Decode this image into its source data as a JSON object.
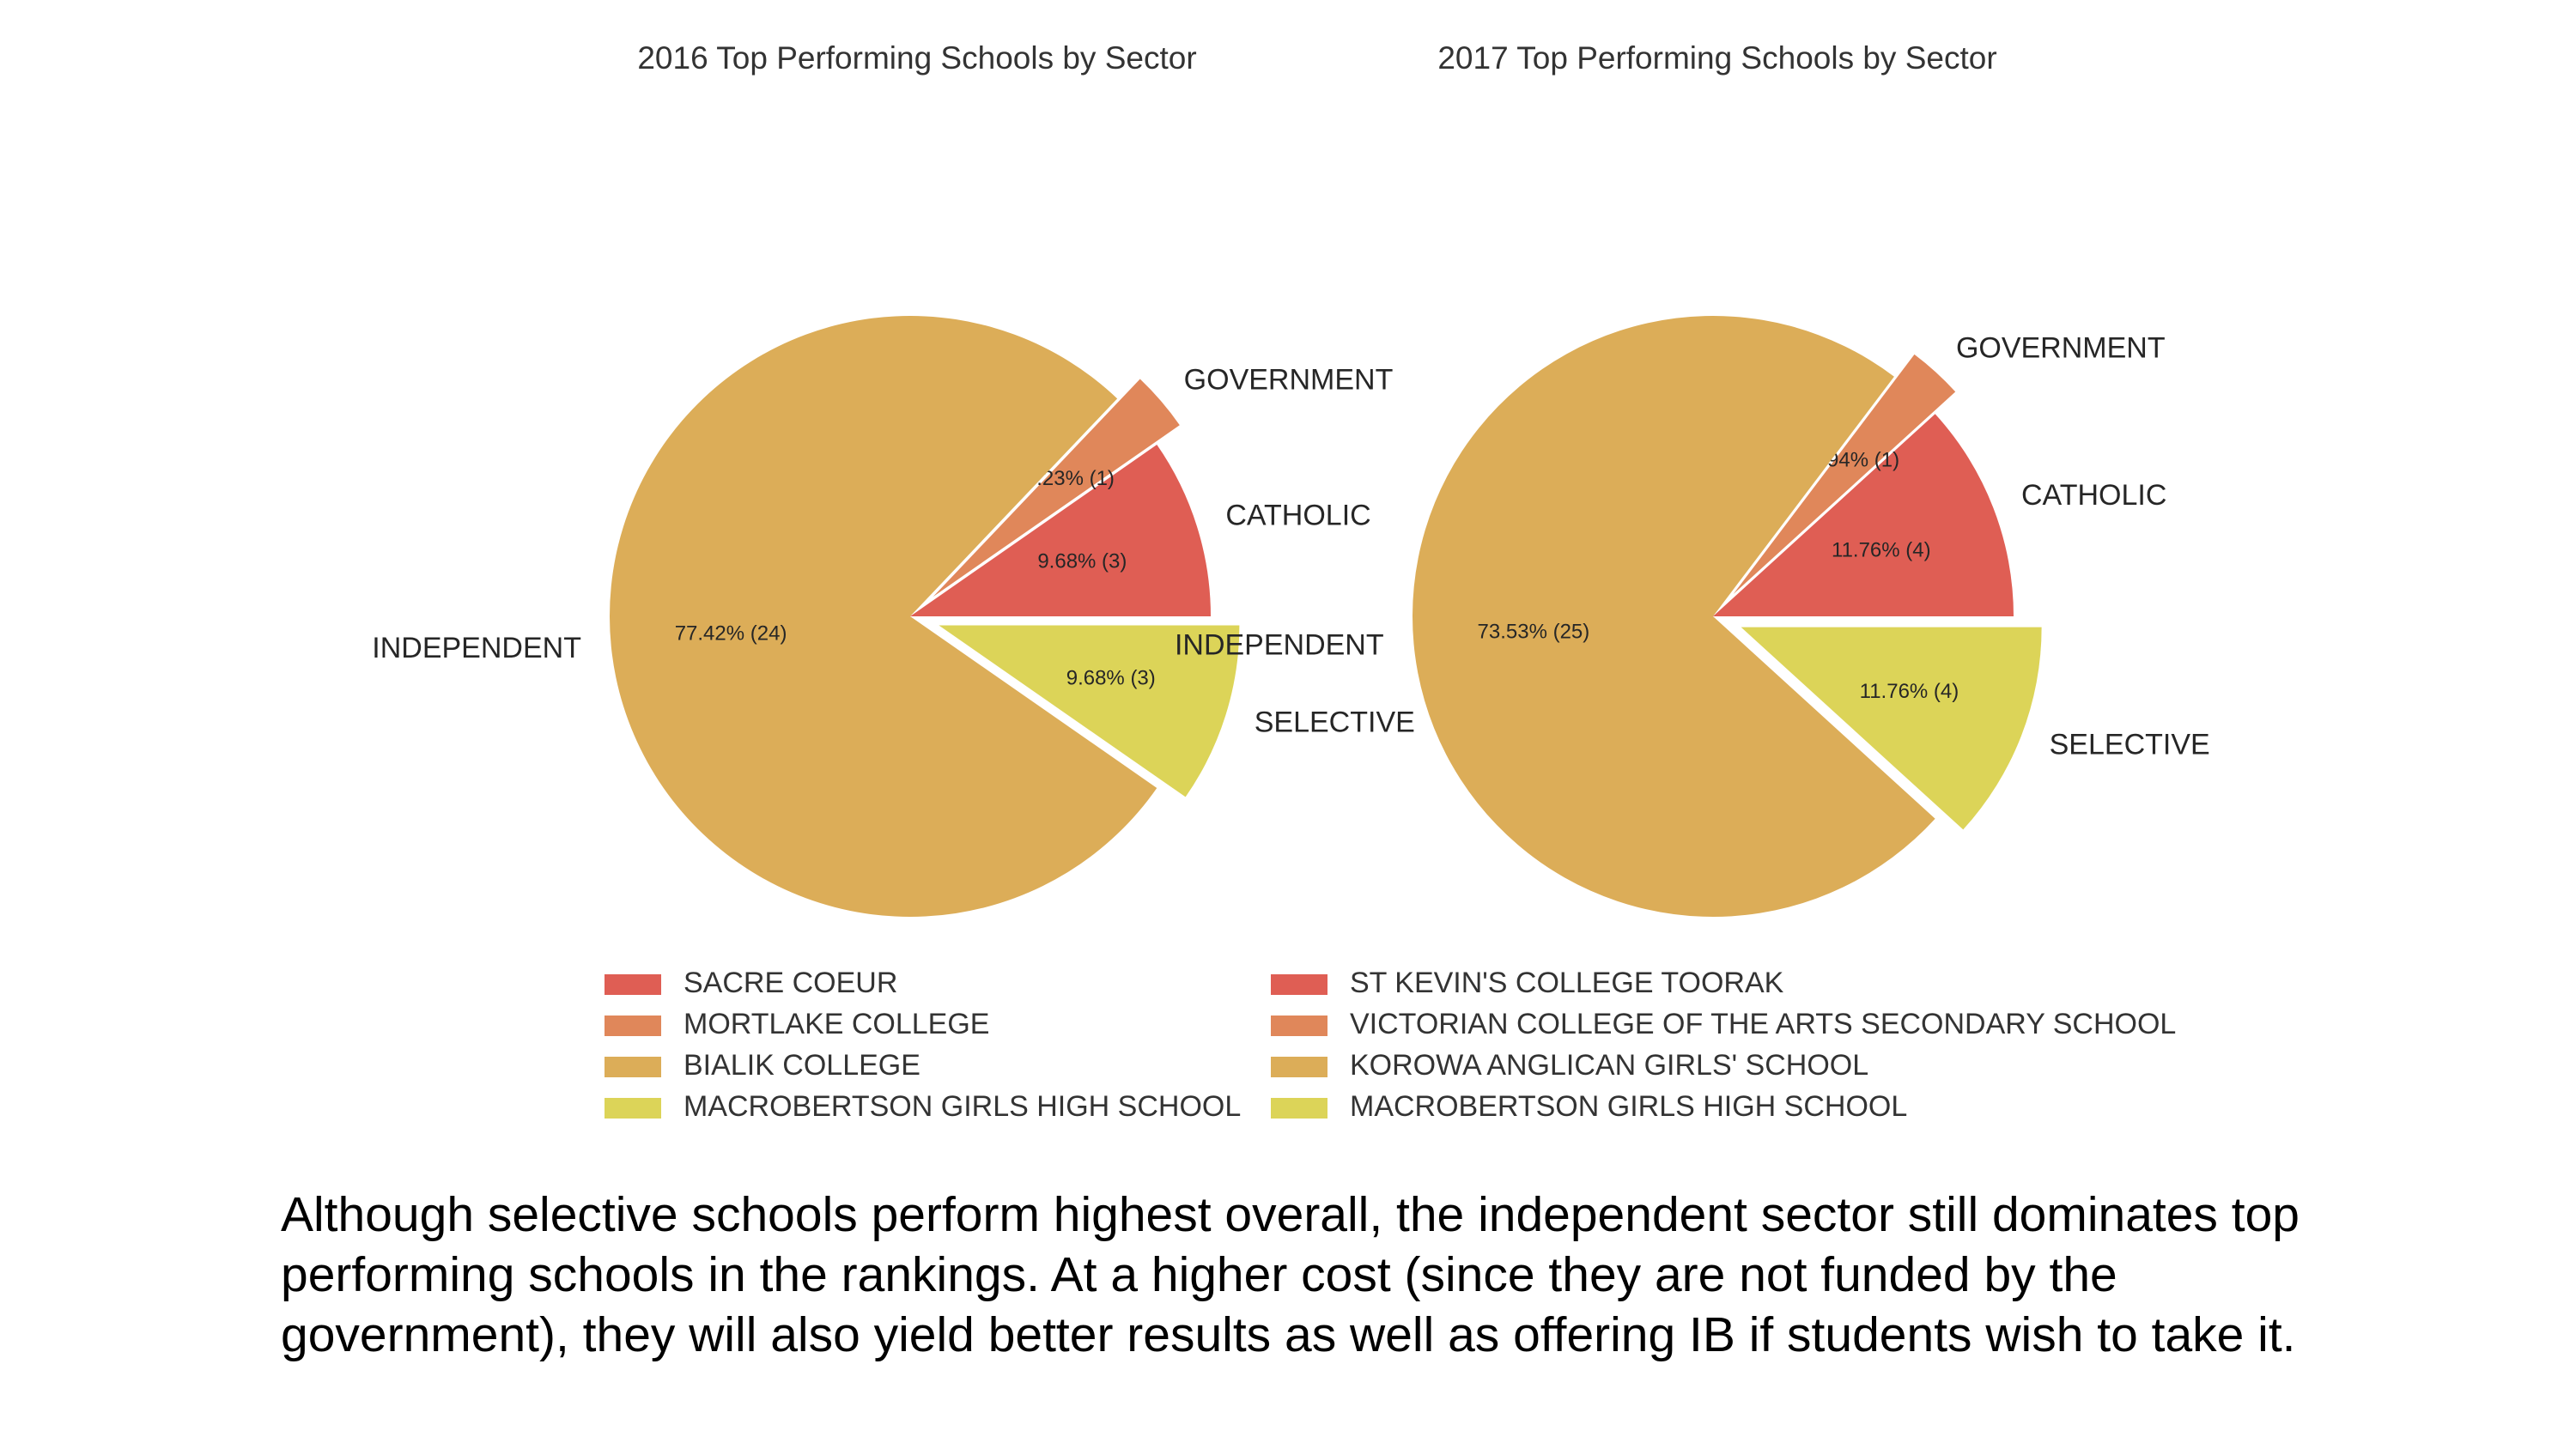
{
  "chart_data": [
    {
      "type": "pie",
      "title": "2016 Top Performing Schools by Sector",
      "slices": [
        {
          "label": "CATHOLIC",
          "value": 3,
          "pct_text": "9.68%  (3)",
          "color": "#df5e54",
          "explode": false
        },
        {
          "label": "GOVERNMENT",
          "value": 1,
          "pct_text": "3.23%  (1)",
          "color": "#e0875a",
          "explode": true
        },
        {
          "label": "INDEPENDENT",
          "value": 24,
          "pct_text": "77.42%  (24)",
          "color": "#dcad58",
          "explode": false
        },
        {
          "label": "SELECTIVE",
          "value": 3,
          "pct_text": "9.68%  (3)",
          "color": "#dcd458",
          "explode": true
        }
      ],
      "legend": [
        {
          "label": "SACRE COEUR",
          "color": "#df5e54"
        },
        {
          "label": "MORTLAKE COLLEGE",
          "color": "#e0875a"
        },
        {
          "label": "BIALIK COLLEGE",
          "color": "#dcad58"
        },
        {
          "label": "MACROBERTSON GIRLS HIGH SCHOOL",
          "color": "#dcd458"
        }
      ],
      "legend_position": "bottom"
    },
    {
      "type": "pie",
      "title": "2017 Top Performing Schools by Sector",
      "slices": [
        {
          "label": "CATHOLIC",
          "value": 4,
          "pct_text": "11.76%  (4)",
          "color": "#df5e54",
          "explode": false
        },
        {
          "label": "GOVERNMENT",
          "value": 1,
          "pct_text": "2.94%  (1)",
          "color": "#e0875a",
          "explode": true
        },
        {
          "label": "INDEPENDENT",
          "value": 25,
          "pct_text": "73.53%  (25)",
          "color": "#dcad58",
          "explode": false
        },
        {
          "label": "SELECTIVE",
          "value": 4,
          "pct_text": "11.76%  (4)",
          "color": "#dcd458",
          "explode": true
        }
      ],
      "legend": [
        {
          "label": "ST KEVIN'S COLLEGE TOORAK",
          "color": "#df5e54"
        },
        {
          "label": "VICTORIAN COLLEGE OF THE ARTS SECONDARY SCHOOL",
          "color": "#e0875a"
        },
        {
          "label": "KOROWA ANGLICAN GIRLS' SCHOOL",
          "color": "#dcad58"
        },
        {
          "label": "MACROBERTSON GIRLS HIGH SCHOOL",
          "color": "#dcd458"
        }
      ],
      "legend_position": "bottom"
    }
  ],
  "caption": "Although selective schools perform highest overall, the independent sector still dominates top performing schools in the rankings. At a higher cost (since they are not funded by the government), they will also yield better results as well as offering IB if students wish to take it."
}
